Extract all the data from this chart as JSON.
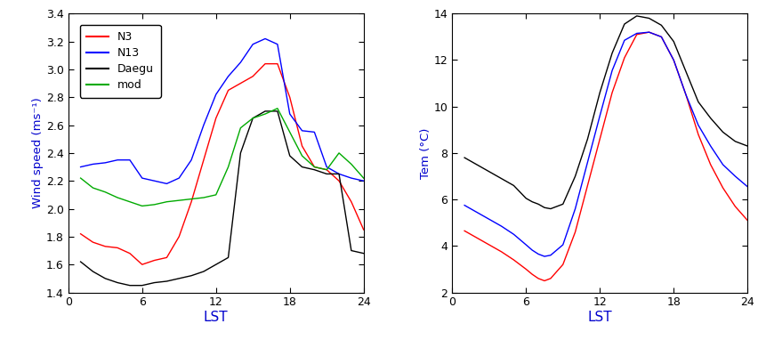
{
  "wind_x": [
    1,
    2,
    3,
    4,
    5,
    6,
    7,
    8,
    9,
    10,
    11,
    12,
    13,
    14,
    15,
    16,
    17,
    18,
    19,
    20,
    21,
    22,
    23,
    24
  ],
  "wind_N3": [
    1.82,
    1.76,
    1.73,
    1.72,
    1.68,
    1.6,
    1.63,
    1.65,
    1.8,
    2.05,
    2.35,
    2.65,
    2.85,
    2.9,
    2.95,
    3.04,
    3.04,
    2.8,
    2.45,
    2.3,
    2.28,
    2.2,
    2.05,
    1.85
  ],
  "wind_N13": [
    2.3,
    2.32,
    2.33,
    2.35,
    2.35,
    2.22,
    2.2,
    2.18,
    2.22,
    2.35,
    2.6,
    2.82,
    2.95,
    3.05,
    3.18,
    3.22,
    3.18,
    2.68,
    2.56,
    2.55,
    2.3,
    2.25,
    2.22,
    2.2
  ],
  "wind_Daegu": [
    1.62,
    1.55,
    1.5,
    1.47,
    1.45,
    1.45,
    1.47,
    1.48,
    1.5,
    1.52,
    1.55,
    1.6,
    1.65,
    2.4,
    2.65,
    2.7,
    2.7,
    2.38,
    2.3,
    2.28,
    2.25,
    2.25,
    1.7,
    1.68
  ],
  "wind_mod": [
    2.22,
    2.15,
    2.12,
    2.08,
    2.05,
    2.02,
    2.03,
    2.05,
    2.06,
    2.07,
    2.08,
    2.1,
    2.3,
    2.58,
    2.65,
    2.68,
    2.72,
    2.55,
    2.38,
    2.3,
    2.28,
    2.4,
    2.32,
    2.22
  ],
  "wind_ylim": [
    1.4,
    3.4
  ],
  "wind_yticks": [
    1.4,
    1.6,
    1.8,
    2.0,
    2.2,
    2.4,
    2.6,
    2.8,
    3.0,
    3.2,
    3.4
  ],
  "wind_ylabel": "Wind speed (ms⁻¹)",
  "wind_xlabel": "LST",
  "temp_x": [
    1,
    2,
    3,
    4,
    5,
    6,
    6.5,
    7,
    7.5,
    8,
    9,
    10,
    11,
    12,
    13,
    14,
    15,
    16,
    17,
    18,
    19,
    20,
    21,
    22,
    23,
    24
  ],
  "temp_N3": [
    4.65,
    4.35,
    4.05,
    3.75,
    3.4,
    3.0,
    2.78,
    2.6,
    2.5,
    2.6,
    3.2,
    4.6,
    6.6,
    8.6,
    10.6,
    12.1,
    13.1,
    13.2,
    13.0,
    12.0,
    10.5,
    8.8,
    7.5,
    6.5,
    5.7,
    5.1
  ],
  "temp_N13": [
    5.75,
    5.45,
    5.15,
    4.85,
    4.5,
    4.05,
    3.82,
    3.65,
    3.55,
    3.6,
    4.05,
    5.6,
    7.6,
    9.6,
    11.55,
    12.85,
    13.15,
    13.2,
    13.0,
    12.0,
    10.5,
    9.2,
    8.3,
    7.5,
    7.0,
    6.55
  ],
  "temp_Daegu": [
    7.8,
    7.5,
    7.2,
    6.9,
    6.6,
    6.05,
    5.9,
    5.8,
    5.65,
    5.6,
    5.8,
    7.0,
    8.6,
    10.6,
    12.3,
    13.55,
    13.9,
    13.8,
    13.5,
    12.8,
    11.5,
    10.2,
    9.5,
    8.9,
    8.5,
    8.3
  ],
  "temp_ylim": [
    2,
    14
  ],
  "temp_yticks": [
    2,
    4,
    6,
    8,
    10,
    12,
    14
  ],
  "temp_ylabel": "Tem (°C)",
  "temp_xlabel": "LST",
  "color_N3": "#ff0000",
  "color_N13": "#0000ff",
  "color_Daegu": "#000000",
  "color_mod": "#00aa00",
  "legend_labels": [
    "N3",
    "N13",
    "Daegu",
    "mod"
  ],
  "xticks": [
    0,
    6,
    12,
    18,
    24
  ],
  "xlabel_color": "#0000cd",
  "ylabel_color": "#0000cd"
}
